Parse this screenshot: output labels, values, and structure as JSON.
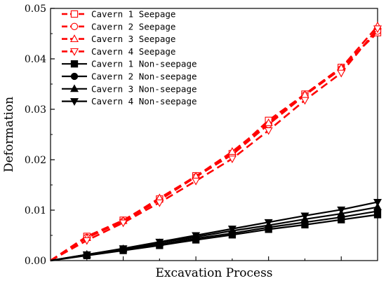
{
  "chart_data": {
    "type": "line",
    "xlabel": "Excavation Process",
    "ylabel": "Deformation",
    "ylim": [
      0,
      0.05
    ],
    "xlim": [
      0,
      9
    ],
    "yticks": [
      "0.00",
      "0.01",
      "0.02",
      "0.03",
      "0.04",
      "0.05"
    ],
    "grid": false,
    "legend_position": "top-left",
    "x": [
      0,
      1,
      2,
      3,
      4,
      5,
      6,
      7,
      8,
      9
    ],
    "series": [
      {
        "name": "Cavern 1 Seepage",
        "color": "#ff0000",
        "marker": "square-open",
        "dash": "dashed",
        "y": [
          0,
          0.0048,
          0.008,
          0.0122,
          0.0168,
          0.0212,
          0.0278,
          0.033,
          0.0383,
          0.0452
        ]
      },
      {
        "name": "Cavern 2 Seepage",
        "color": "#ff0000",
        "marker": "circle-open",
        "dash": "dashed",
        "y": [
          0,
          0.0046,
          0.0078,
          0.012,
          0.0166,
          0.021,
          0.027,
          0.0328,
          0.038,
          0.0455
        ]
      },
      {
        "name": "Cavern 3 Seepage",
        "color": "#ff0000",
        "marker": "triangle-up-open",
        "dash": "dashed",
        "y": [
          0,
          0.0045,
          0.0079,
          0.0124,
          0.0167,
          0.0216,
          0.0273,
          0.0329,
          0.0382,
          0.0465
        ]
      },
      {
        "name": "Cavern 4 Seepage",
        "color": "#ff0000",
        "marker": "triangle-down-open",
        "dash": "dashed",
        "y": [
          0,
          0.004,
          0.0075,
          0.0115,
          0.0158,
          0.0202,
          0.0258,
          0.0318,
          0.0372,
          0.046
        ]
      },
      {
        "name": "Cavern 1 Non-seepage",
        "color": "#000000",
        "marker": "square-filled",
        "dash": "solid",
        "y": [
          0,
          0.001,
          0.002,
          0.003,
          0.0041,
          0.0051,
          0.0062,
          0.0071,
          0.0081,
          0.0091
        ]
      },
      {
        "name": "Cavern 2 Non-seepage",
        "color": "#000000",
        "marker": "circle-filled",
        "dash": "solid",
        "y": [
          0,
          0.0011,
          0.0022,
          0.0032,
          0.0044,
          0.0054,
          0.0066,
          0.0076,
          0.0086,
          0.0098
        ]
      },
      {
        "name": "Cavern 3 Non-seepage",
        "color": "#000000",
        "marker": "triangle-up-filled",
        "dash": "solid",
        "y": [
          0,
          0.0012,
          0.0023,
          0.0035,
          0.0047,
          0.0059,
          0.007,
          0.0082,
          0.0093,
          0.0106
        ]
      },
      {
        "name": "Cavern 4 Non-seepage",
        "color": "#000000",
        "marker": "triangle-down-filled",
        "dash": "solid",
        "y": [
          0,
          0.0012,
          0.0024,
          0.0037,
          0.005,
          0.0063,
          0.0076,
          0.0089,
          0.0101,
          0.0116
        ]
      }
    ]
  }
}
